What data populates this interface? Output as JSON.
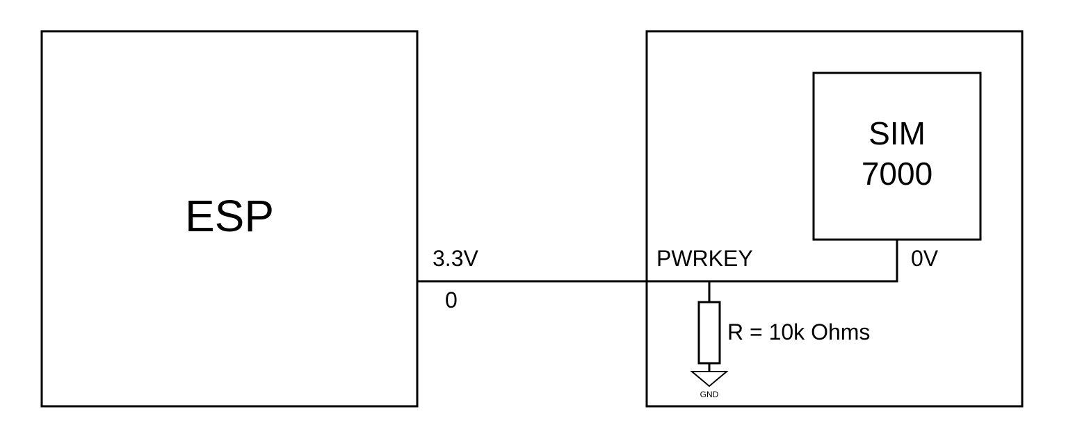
{
  "diagram": {
    "blocks": {
      "esp": {
        "label": "ESP"
      },
      "module": {
        "label": ""
      },
      "sim": {
        "label_line1": "SIM",
        "label_line2": "7000"
      }
    },
    "labels": {
      "esp_voltage": "3.3V",
      "esp_pin": "0",
      "pwrkey": "PWRKEY",
      "sim_level": "0V",
      "resistor": "R = 10k Ohms",
      "ground": "GND"
    }
  },
  "colors": {
    "stroke": "#000000",
    "background": "#ffffff"
  }
}
